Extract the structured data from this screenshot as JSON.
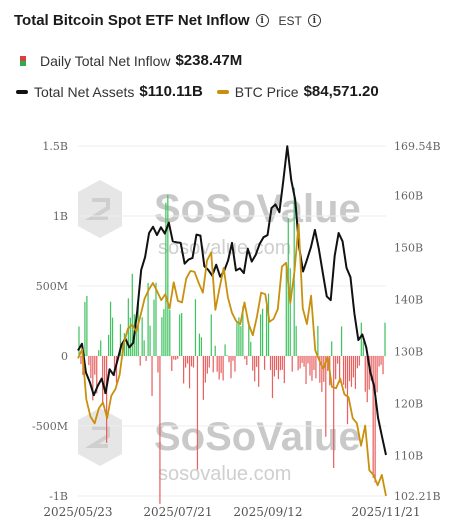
{
  "header": {
    "title": "Total Bitcoin Spot ETF Net Inflow",
    "timezone": "EST"
  },
  "legend": {
    "inflow": {
      "label": "Daily Total Net Inflow",
      "value": "$238.47M"
    },
    "assets": {
      "label": "Total Net Assets",
      "value": "$110.11B",
      "color": "#111111"
    },
    "price": {
      "label": "BTC Price",
      "value": "$84,571.20",
      "color": "#c9900d"
    }
  },
  "watermark": {
    "logo": "SoSoValue",
    "url": "sosovalue.com"
  },
  "chart_data": {
    "type": "bar",
    "left_axis": {
      "ticks": [
        "1.5B",
        "1B",
        "500M",
        "0",
        "-500M",
        "-1B"
      ],
      "ylim": [
        -1000,
        1500
      ],
      "unit": "M USD"
    },
    "right_axis": {
      "ticks": [
        "169.54B",
        "160B",
        "150B",
        "140B",
        "130B",
        "120B",
        "110B",
        "102.21B"
      ],
      "ylim": [
        102.21,
        169.54
      ],
      "unit": "B USD"
    },
    "x_ticks": [
      "2025/05/23",
      "2025/07/21",
      "2025/09/12",
      "2025/11/21"
    ],
    "x_range": [
      "2025-05-23",
      "2025-11-21"
    ],
    "colors": {
      "positive": "#3fc25f",
      "negative": "#e86060",
      "assets": "#111111",
      "price": "#c9900d"
    },
    "series": [
      {
        "name": "Daily Total Net Inflow",
        "unit": "M USD",
        "values": [
          211,
          -58,
          -136,
          386,
          429,
          -65,
          -158,
          -317,
          -134,
          -267,
          42,
          111,
          -346,
          -270,
          -620,
          151,
          388,
          274,
          -144,
          -192,
          2,
          227,
          76,
          164,
          94,
          412,
          274,
          587,
          298,
          217,
          405,
          -69,
          276,
          112,
          -35,
          522,
          217,
          -285,
          403,
          524,
          -118,
          -1056,
          277,
          335,
          1095,
          1151,
          330,
          -107,
          -25,
          -28,
          -20,
          297,
          307,
          -196,
          -83,
          -54,
          -231,
          -74,
          -82,
          406,
          -811,
          160,
          133,
          -313,
          -190,
          -126,
          -82,
          297,
          -117,
          73,
          -112,
          -168,
          -122,
          -175,
          83,
          5,
          -44,
          -159,
          -34,
          -111,
          242,
          276,
          213,
          355,
          -23,
          -64,
          248,
          102,
          -105,
          -181,
          -78,
          -220,
          297,
          338,
          -99,
          355,
          446,
          -101,
          -301,
          -146,
          -100,
          -165,
          -102,
          -99,
          -194,
          628,
          985,
          627,
          -112,
          1202,
          215,
          -102,
          -89,
          -50,
          -77,
          -200,
          -53,
          -140,
          -177,
          -100,
          -160,
          215,
          -191,
          -256,
          -185,
          -577,
          -107,
          -210,
          105,
          -800,
          -166,
          -55,
          -190,
          211,
          -205,
          -232,
          -487,
          -180,
          -220,
          -153,
          -235,
          -88,
          -69,
          238,
          104,
          -255,
          -330,
          -240,
          -176,
          -870,
          -903,
          -260,
          -75,
          -63,
          -130,
          238
        ],
        "dates_from": "2025-05-23",
        "dates_to": "2025-11-21"
      },
      {
        "name": "Total Net Assets",
        "unit": "B USD",
        "values": [
          130.2,
          131.5,
          126.0,
          124.1,
          121.6,
          123.4,
          124.8,
          122.0,
          126.6,
          125.5,
          128.3,
          131.3,
          132.5,
          130.8,
          131.7,
          137.8,
          145.7,
          148.2,
          152.8,
          154.0,
          152.4,
          153.9,
          152.7,
          154.8,
          151.2,
          151.0,
          150.9,
          146.9,
          147.7,
          148.0,
          152.5,
          152.3,
          146.4,
          145.7,
          144.6,
          146.7,
          144.4,
          145.5,
          147.5,
          150.9,
          145.6,
          146.0,
          145.1,
          149.8,
          147.3,
          148.6,
          150.7,
          152.0,
          152.4,
          157.6,
          158.3,
          156.8,
          162.9,
          169.5,
          163.0,
          159.2,
          150.1,
          145.4,
          147.7,
          150.1,
          153.4,
          149.7,
          145.1,
          140.6,
          139.9,
          148.4,
          152.8,
          151.2,
          146.1,
          144.3,
          137.3,
          132.2,
          133.3,
          130.8,
          126.1,
          123.3,
          117.2,
          113.6,
          110.1
        ],
        "points_from": "2025-05-23",
        "points_to": "2025-11-21"
      },
      {
        "name": "BTC Price",
        "unit": "USD",
        "values": [
          103000,
          104200,
          97500,
          95200,
          94300,
          96300,
          97100,
          95000,
          98000,
          98900,
          100800,
          105000,
          107000,
          107500,
          106600,
          108700,
          111000,
          112200,
          113100,
          112000,
          110800,
          111600,
          109700,
          113200,
          110700,
          110500,
          113700,
          114700,
          114600,
          113100,
          111800,
          116100,
          117200,
          109500,
          112400,
          115100,
          111200,
          109100,
          108000,
          107600,
          110500,
          107600,
          106100,
          108600,
          111800,
          111600,
          107900,
          108300,
          109600,
          115300,
          115800,
          110400,
          114600,
          121000,
          109700,
          107600,
          111400,
          104100,
          102700,
          101600,
          103200,
          99200,
          99000,
          100300,
          98200,
          97800,
          95000,
          94300,
          91300,
          94000,
          88000,
          87400,
          86000,
          87400,
          84570
        ]
      }
    ]
  }
}
